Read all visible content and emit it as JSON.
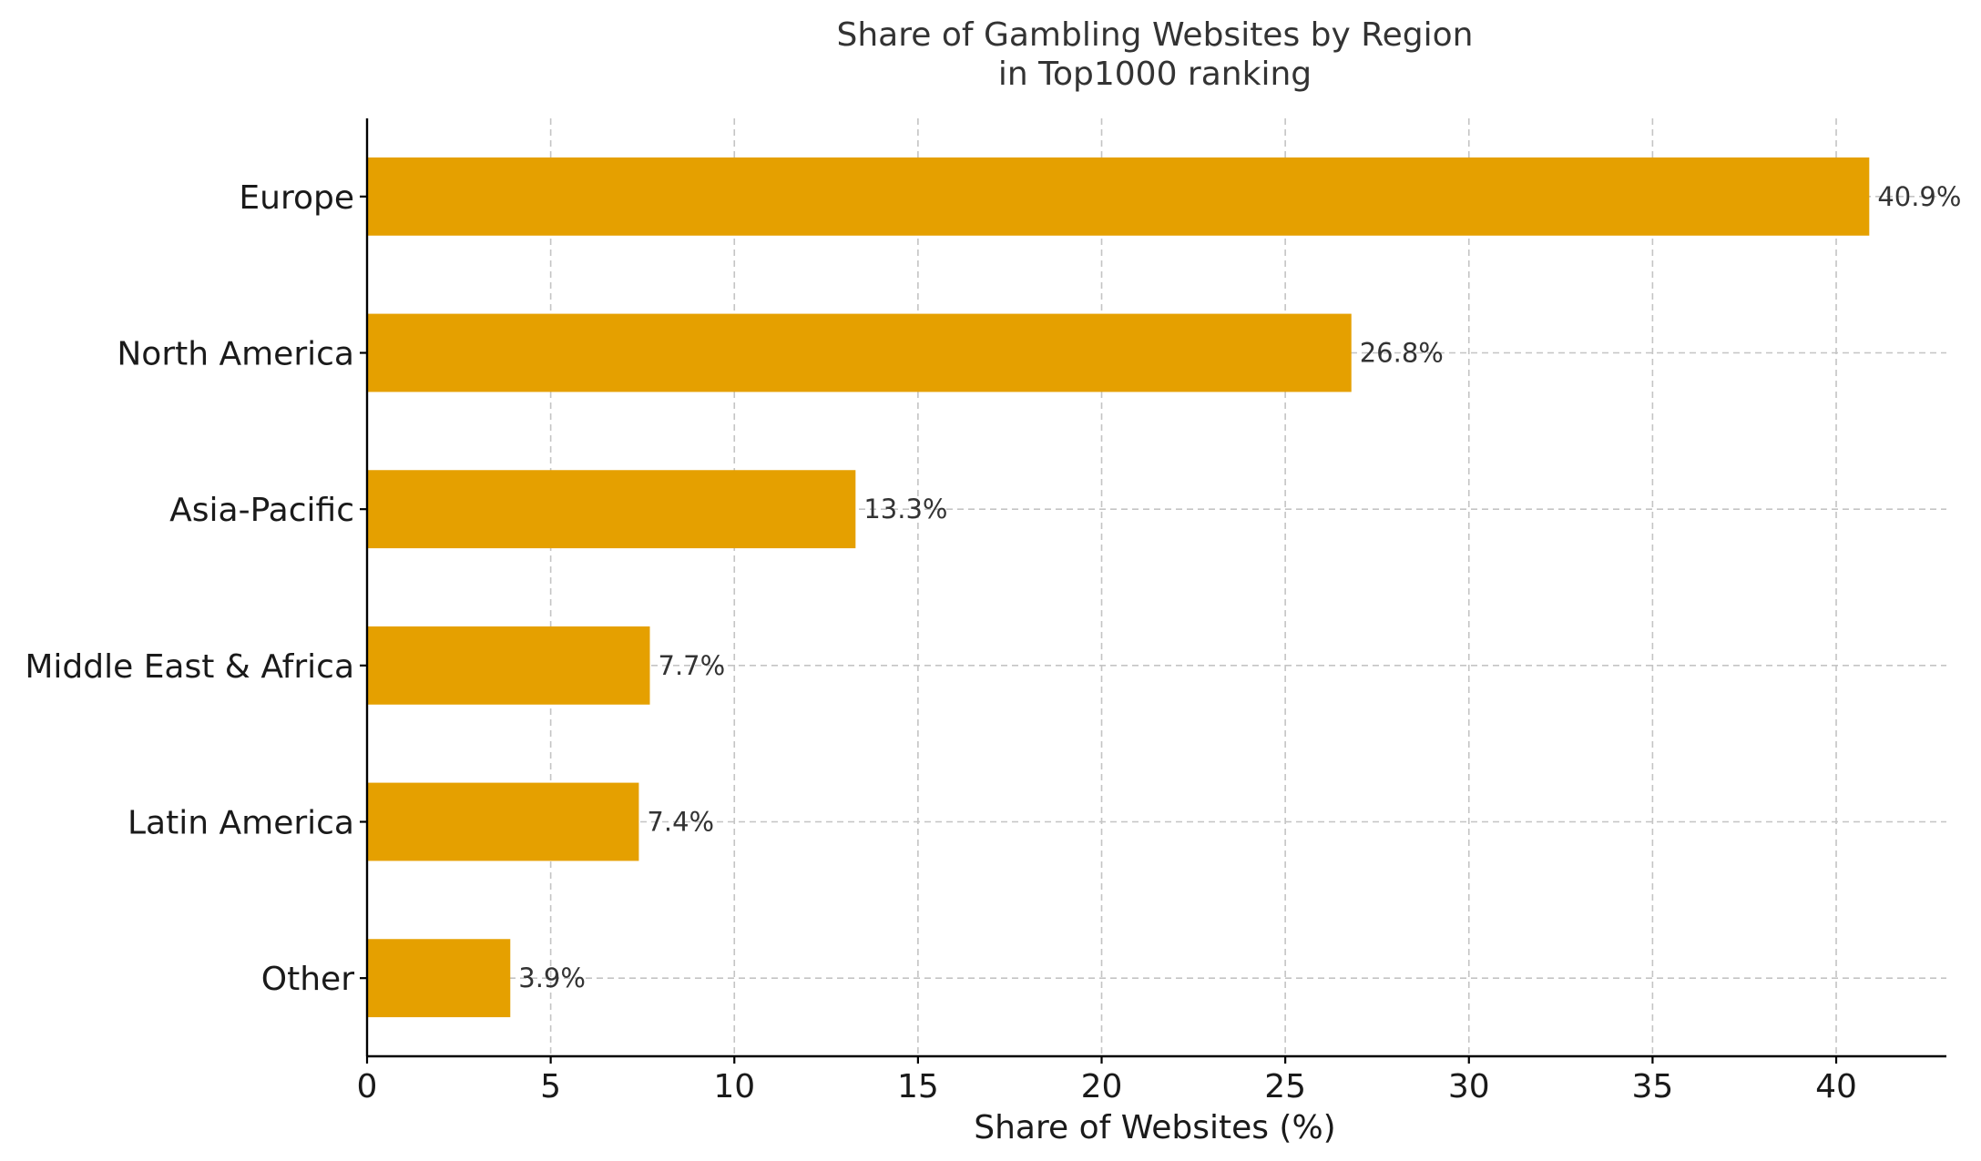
{
  "chart_data": {
    "type": "bar",
    "orientation": "horizontal",
    "title_lines": [
      "Share of Gambling Websites by Region",
      "in Top1000 ranking"
    ],
    "xlabel": "Share of Websites (%)",
    "ylabel": "",
    "categories": [
      "Europe",
      "North America",
      "Asia-Pacific",
      "Middle East & Africa",
      "Latin America",
      "Other"
    ],
    "values": [
      40.9,
      26.8,
      13.3,
      7.7,
      7.4,
      3.9
    ],
    "value_labels": [
      "40.9%",
      "26.8%",
      "13.3%",
      "7.7%",
      "7.4%",
      "3.9%"
    ],
    "xlim": [
      0,
      43
    ],
    "xticks": [
      0,
      5,
      10,
      15,
      20,
      25,
      30,
      35,
      40
    ],
    "xtick_labels": [
      "0",
      "5",
      "10",
      "15",
      "20",
      "25",
      "30",
      "35",
      "40"
    ],
    "bar_color": "#E5A000",
    "grid": true,
    "grid_style": "dashed"
  }
}
